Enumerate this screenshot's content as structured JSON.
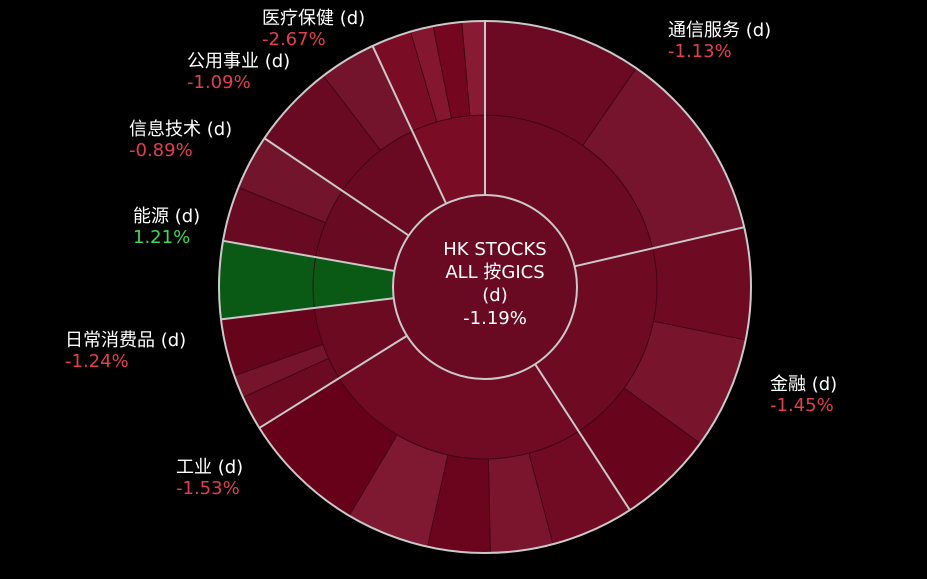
{
  "chart_data": {
    "type": "sunburst",
    "center": {
      "line1": "HK STOCKS",
      "line2": "ALL 按GICS",
      "line3": "(d)",
      "value": "-1.19%"
    },
    "sectors": [
      {
        "id": "comm",
        "name": "通信服务 (d)",
        "value": -1.13,
        "label": "-1.13%",
        "color": "#6b0a22"
      },
      {
        "id": "fin",
        "name": "金融 (d)",
        "value": -1.45,
        "label": "-1.45%",
        "color": "#6e0a22"
      },
      {
        "id": "ind",
        "name": "工业 (d)",
        "value": -1.53,
        "label": "-1.53%",
        "color": "#700b23"
      },
      {
        "id": "staples",
        "name": "日常消费品 (d)",
        "value": -1.24,
        "label": "-1.24%",
        "color": "#6c0a22"
      },
      {
        "id": "energy",
        "name": "能源 (d)",
        "value": 1.21,
        "label": "1.21%",
        "color": "#0a5a16"
      },
      {
        "id": "it",
        "name": "信息技术 (d)",
        "value": -0.89,
        "label": "-0.89%",
        "color": "#680a21"
      },
      {
        "id": "util",
        "name": "公用事业 (d)",
        "value": -1.09,
        "label": "-1.09%",
        "color": "#6a0a22"
      },
      {
        "id": "health",
        "name": "医疗保健 (d)",
        "value": -2.67,
        "label": "-2.67%",
        "color": "#7a0c25"
      }
    ],
    "colors": {
      "background": "#000000",
      "separator": "#c9c9c9",
      "negative_text": "#e0404e",
      "positive_text": "#3fd65a"
    }
  }
}
